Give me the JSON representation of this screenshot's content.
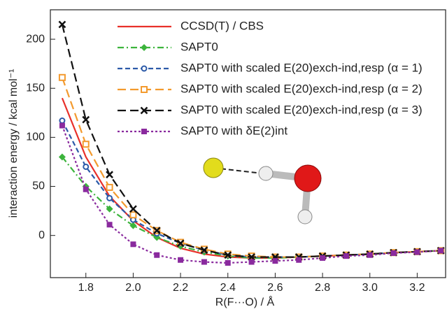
{
  "chart_data": {
    "type": "line",
    "x": [
      1.7,
      1.8,
      1.9,
      2.0,
      2.1,
      2.2,
      2.3,
      2.4,
      2.5,
      2.6,
      2.7,
      2.8,
      2.9,
      3.0,
      3.1,
      3.2,
      3.3
    ],
    "x_label": "R(F···O) / Å",
    "y_label": "interaction energy / kcal mol⁻¹",
    "xlim": [
      1.65,
      3.32
    ],
    "ylim": [
      -43,
      230
    ],
    "xticks": [
      1.8,
      {
        "value": 2,
        "label": "2.0"
      },
      2.2,
      2.4,
      2.6,
      2.8,
      {
        "value": 3,
        "label": "3.0"
      },
      3.2
    ],
    "yticks": [
      0,
      50,
      100,
      150,
      200
    ],
    "legend": "upper right",
    "series": [
      {
        "name": "CCSD(T) / CBS",
        "color": "#e8302a",
        "dash": "solid",
        "marker": "none",
        "values": [
          140,
          80,
          40,
          15,
          -2,
          -13,
          -19,
          -22,
          -23,
          -23,
          -22,
          -21,
          -20,
          -19,
          -17.5,
          -16.5,
          -15.5
        ]
      },
      {
        "name": "SAPT0",
        "color": "#3cb43c",
        "dash": "dashdot",
        "marker": "diamond",
        "values": [
          80,
          50,
          27,
          10,
          -2,
          -11,
          -17,
          -21,
          -23,
          -23,
          -22,
          -21,
          -20,
          -19,
          -17.5,
          -16.5,
          -15.5
        ]
      },
      {
        "name": "SAPT0 with scaled E(20)exch-ind,resp (α = 1)",
        "color": "#2c5aa8",
        "dash": "dashed",
        "marker": "circle",
        "values": [
          117,
          70,
          38,
          16,
          2,
          -8,
          -15,
          -20,
          -22,
          -22,
          -22,
          -21,
          -20,
          -19,
          -17.5,
          -16.5,
          -15.5
        ]
      },
      {
        "name": "SAPT0 with scaled E(20)exch-ind,resp (α = 2)",
        "color": "#f39a2e",
        "dash": "longdash",
        "marker": "square",
        "values": [
          161,
          93,
          49,
          21,
          5,
          -7,
          -14,
          -19,
          -21,
          -22,
          -22,
          -21,
          -20,
          -19,
          -17.5,
          -16.5,
          -15.5
        ]
      },
      {
        "name": "SAPT0 with scaled E(20)exch-ind,resp (α = 3)",
        "color": "#111111",
        "dash": "longdash",
        "marker": "x",
        "values": [
          215,
          118,
          62,
          27,
          5,
          -8,
          -15,
          -20,
          -22,
          -22,
          -22,
          -21,
          -20,
          -19,
          -17.5,
          -16.5,
          -15.5
        ]
      },
      {
        "name": "SAPT0 with δE(2)int",
        "color": "#8a2a9e",
        "dash": "dotted",
        "marker": "filledsquare",
        "values": [
          112,
          47,
          11,
          -9,
          -20,
          -25,
          -27,
          -28,
          -27,
          -26,
          -25,
          -23,
          -21,
          -20,
          -18,
          -17,
          -15.5
        ]
      }
    ]
  }
}
